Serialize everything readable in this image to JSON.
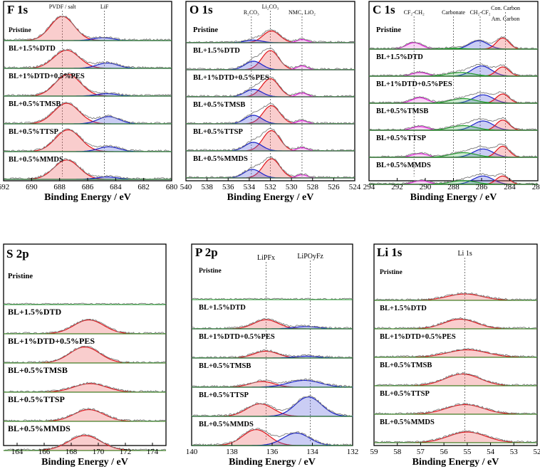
{
  "chart_data": [
    {
      "type": "line",
      "title": "F 1s",
      "xlabel": "Binding Energy / eV",
      "xlim": [
        692,
        680
      ],
      "ticks": [
        692,
        690,
        688,
        686,
        684,
        682,
        680
      ],
      "tick_labels": [
        "692",
        "690",
        "688",
        "686",
        "684",
        "682",
        "680"
      ],
      "peak_labels": [
        {
          "text": "PVDF / salt",
          "x": 687.8
        },
        {
          "text": "LiF",
          "x": 684.8
        }
      ],
      "samples": [
        "Pristine",
        "BL+1.5%DTD",
        "BL+1%DTD+0.5%PES",
        "BL+0.5%TMSB",
        "BL+0.5%TTSP",
        "BL+0.5%MMDS"
      ],
      "series": [
        {
          "name": "Pristine",
          "peaks": [
            {
              "center": 687.8,
              "height": 1.0,
              "width": 0.85,
              "color": "red"
            },
            {
              "center": 684.9,
              "height": 0.12,
              "width": 0.7,
              "color": "blue"
            }
          ]
        },
        {
          "name": "BL+1.5%DTD",
          "peaks": [
            {
              "center": 687.5,
              "height": 0.75,
              "width": 0.9,
              "color": "red"
            },
            {
              "center": 684.6,
              "height": 0.22,
              "width": 0.75,
              "color": "blue"
            }
          ]
        },
        {
          "name": "BL+1%DTD+0.5%PES",
          "peaks": [
            {
              "center": 687.4,
              "height": 0.9,
              "width": 0.9,
              "color": "red"
            },
            {
              "center": 684.6,
              "height": 0.1,
              "width": 0.75,
              "color": "blue"
            }
          ]
        },
        {
          "name": "BL+0.5%TMSB",
          "peaks": [
            {
              "center": 687.5,
              "height": 0.85,
              "width": 0.9,
              "color": "red"
            },
            {
              "center": 684.5,
              "height": 0.3,
              "width": 0.75,
              "color": "blue"
            }
          ]
        },
        {
          "name": "BL+0.5%TTSP",
          "peaks": [
            {
              "center": 687.4,
              "height": 0.9,
              "width": 0.9,
              "color": "red"
            },
            {
              "center": 684.5,
              "height": 0.2,
              "width": 0.75,
              "color": "blue"
            }
          ]
        },
        {
          "name": "BL+0.5%MMDS",
          "peaks": [
            {
              "center": 687.5,
              "height": 0.8,
              "width": 0.9,
              "color": "red"
            },
            {
              "center": 684.6,
              "height": 0.1,
              "width": 0.75,
              "color": "blue"
            }
          ]
        }
      ]
    },
    {
      "type": "line",
      "title": "O 1s",
      "xlabel": "Binding Energy / eV",
      "xlim": [
        540,
        524
      ],
      "ticks": [
        540,
        538,
        536,
        534,
        532,
        530,
        528,
        526,
        524
      ],
      "tick_labels": [
        "540",
        "538",
        "536",
        "534",
        "532",
        "530",
        "528",
        "526",
        "524"
      ],
      "peak_labels": [
        {
          "text": "R₂CO₃",
          "x": 533.8
        },
        {
          "text": "Li₂CO₃",
          "x": 532.0
        },
        {
          "text": "NMC, LiO₂",
          "x": 529.0
        }
      ],
      "samples": [
        "Pristine",
        "BL+1.5%DTD",
        "BL+1%DTD+0.5%PES",
        "BL+0.5%TMSB",
        "BL+0.5%TTSP",
        "BL+0.5%MMDS"
      ],
      "series": [
        {
          "name": "Pristine",
          "peaks": [
            {
              "center": 531.9,
              "height": 0.55,
              "width": 0.8,
              "color": "red"
            },
            {
              "center": 533.6,
              "height": 0.12,
              "width": 0.8,
              "color": "blue"
            },
            {
              "center": 529.0,
              "height": 0.15,
              "width": 0.5,
              "color": "magenta"
            }
          ]
        },
        {
          "name": "BL+1.5%DTD",
          "peaks": [
            {
              "center": 532.0,
              "height": 0.9,
              "width": 0.8,
              "color": "red"
            },
            {
              "center": 533.6,
              "height": 0.4,
              "width": 0.8,
              "color": "blue"
            },
            {
              "center": 529.0,
              "height": 0.18,
              "width": 0.5,
              "color": "magenta"
            }
          ]
        },
        {
          "name": "BL+1%DTD+0.5%PES",
          "peaks": [
            {
              "center": 532.0,
              "height": 0.85,
              "width": 0.8,
              "color": "red"
            },
            {
              "center": 533.6,
              "height": 0.35,
              "width": 0.8,
              "color": "blue"
            },
            {
              "center": 529.0,
              "height": 0.18,
              "width": 0.5,
              "color": "magenta"
            }
          ]
        },
        {
          "name": "BL+0.5%TMSB",
          "peaks": [
            {
              "center": 531.9,
              "height": 0.85,
              "width": 0.8,
              "color": "red"
            },
            {
              "center": 533.6,
              "height": 0.4,
              "width": 0.8,
              "color": "blue"
            },
            {
              "center": 529.0,
              "height": 0.15,
              "width": 0.5,
              "color": "magenta"
            }
          ]
        },
        {
          "name": "BL+0.5%TTSP",
          "peaks": [
            {
              "center": 531.9,
              "height": 0.95,
              "width": 0.8,
              "color": "red"
            },
            {
              "center": 533.6,
              "height": 0.4,
              "width": 0.8,
              "color": "blue"
            },
            {
              "center": 529.0,
              "height": 0.15,
              "width": 0.5,
              "color": "magenta"
            }
          ]
        },
        {
          "name": "BL+0.5%MMDS",
          "peaks": [
            {
              "center": 531.9,
              "height": 0.9,
              "width": 0.8,
              "color": "red"
            },
            {
              "center": 533.7,
              "height": 0.4,
              "width": 0.8,
              "color": "blue"
            },
            {
              "center": 529.0,
              "height": 0.15,
              "width": 0.5,
              "color": "magenta"
            }
          ]
        }
      ]
    },
    {
      "type": "line",
      "title": "C 1s",
      "xlabel": "Binding Energy / eV",
      "xlim": [
        294,
        282
      ],
      "ticks": [
        294,
        292,
        290,
        288,
        286,
        284,
        282
      ],
      "tick_labels": [
        "294",
        "292",
        "290",
        "288",
        "286",
        "284",
        "282"
      ],
      "peak_labels": [
        {
          "text": "CF₂-CH₂",
          "x": 290.8
        },
        {
          "text": "Carbonate",
          "x": 288.0
        },
        {
          "text": "CH₂-CF₂",
          "x": 286.1
        },
        {
          "text": "Con. Carbon",
          "x": 284.3
        },
        {
          "text": "Am. Carbon",
          "x": 284.3
        }
      ],
      "samples": [
        "Pristine",
        "BL+1.5%DTD",
        "BL+1%DTD+0.5%PES",
        "BL+0.5%TMSB",
        "BL+0.5%TTSP",
        "BL+0.5%MMDS"
      ],
      "series": [
        {
          "name": "Pristine",
          "peaks": [
            {
              "center": 290.8,
              "height": 0.35,
              "width": 0.55,
              "color": "magenta"
            },
            {
              "center": 286.2,
              "height": 0.45,
              "width": 0.65,
              "color": "blue"
            },
            {
              "center": 284.5,
              "height": 0.6,
              "width": 0.45,
              "color": "red"
            },
            {
              "center": 288.0,
              "height": 0.05,
              "width": 0.7,
              "color": "green"
            }
          ]
        },
        {
          "name": "BL+1.5%DTD",
          "peaks": [
            {
              "center": 290.4,
              "height": 0.2,
              "width": 0.55,
              "color": "magenta"
            },
            {
              "center": 286.0,
              "height": 0.55,
              "width": 0.7,
              "color": "blue"
            },
            {
              "center": 284.5,
              "height": 0.5,
              "width": 0.45,
              "color": "red"
            },
            {
              "center": 287.5,
              "height": 0.2,
              "width": 0.9,
              "color": "green"
            }
          ]
        },
        {
          "name": "BL+1%DTD+0.5%PES",
          "peaks": [
            {
              "center": 290.4,
              "height": 0.3,
              "width": 0.55,
              "color": "magenta"
            },
            {
              "center": 285.9,
              "height": 0.45,
              "width": 0.7,
              "color": "blue"
            },
            {
              "center": 284.5,
              "height": 0.5,
              "width": 0.45,
              "color": "red"
            },
            {
              "center": 287.3,
              "height": 0.25,
              "width": 0.9,
              "color": "green"
            }
          ]
        },
        {
          "name": "BL+0.5%TMSB",
          "peaks": [
            {
              "center": 290.4,
              "height": 0.2,
              "width": 0.55,
              "color": "magenta"
            },
            {
              "center": 285.9,
              "height": 0.5,
              "width": 0.7,
              "color": "blue"
            },
            {
              "center": 284.5,
              "height": 0.55,
              "width": 0.45,
              "color": "red"
            },
            {
              "center": 287.3,
              "height": 0.25,
              "width": 0.9,
              "color": "green"
            }
          ]
        },
        {
          "name": "BL+0.5%TTSP",
          "peaks": [
            {
              "center": 290.4,
              "height": 0.2,
              "width": 0.55,
              "color": "magenta"
            },
            {
              "center": 285.9,
              "height": 0.45,
              "width": 0.7,
              "color": "blue"
            },
            {
              "center": 284.5,
              "height": 0.6,
              "width": 0.45,
              "color": "red"
            },
            {
              "center": 287.3,
              "height": 0.25,
              "width": 0.9,
              "color": "green"
            }
          ]
        },
        {
          "name": "BL+0.5%MMDS",
          "peaks": [
            {
              "center": 290.3,
              "height": 0.2,
              "width": 0.55,
              "color": "magenta"
            },
            {
              "center": 285.9,
              "height": 0.45,
              "width": 0.7,
              "color": "blue"
            },
            {
              "center": 284.5,
              "height": 0.45,
              "width": 0.45,
              "color": "red"
            },
            {
              "center": 287.3,
              "height": 0.2,
              "width": 0.9,
              "color": "green"
            }
          ]
        }
      ]
    },
    {
      "type": "line",
      "title": "S 2p",
      "xlabel": "Binding Energy / eV",
      "xlim": [
        163,
        175
      ],
      "ticks": [
        164,
        166,
        168,
        170,
        172,
        174
      ],
      "tick_labels": [
        "164",
        "166",
        "168",
        "170",
        "172",
        "174"
      ],
      "peak_labels": [],
      "samples": [
        "Pristine",
        "BL+1.5%DTD",
        "BL+1%DTD+0.5%PES",
        "BL+0.5%TMSB",
        "BL+0.5%TTSP",
        "BL+0.5%MMDS"
      ],
      "series": [
        {
          "name": "Pristine",
          "peaks": []
        },
        {
          "name": "BL+1.5%DTD",
          "peaks": [
            {
              "center": 169.3,
              "height": 0.65,
              "width": 1.1,
              "color": "red"
            }
          ]
        },
        {
          "name": "BL+1%DTD+0.5%PES",
          "peaks": [
            {
              "center": 169.0,
              "height": 0.75,
              "width": 1.1,
              "color": "red"
            }
          ]
        },
        {
          "name": "BL+0.5%TMSB",
          "peaks": [
            {
              "center": 169.4,
              "height": 0.4,
              "width": 1.2,
              "color": "red"
            }
          ]
        },
        {
          "name": "BL+0.5%TTSP",
          "peaks": [
            {
              "center": 169.3,
              "height": 0.55,
              "width": 1.1,
              "color": "red"
            }
          ]
        },
        {
          "name": "BL+0.5%MMDS",
          "peaks": [
            {
              "center": 169.0,
              "height": 0.7,
              "width": 1.2,
              "color": "red"
            }
          ]
        }
      ]
    },
    {
      "type": "line",
      "title": "P 2p",
      "xlabel": "Binding Energy / eV",
      "xlim": [
        140,
        132
      ],
      "ticks": [
        140,
        138,
        136,
        134,
        132
      ],
      "tick_labels": [
        "140",
        "138",
        "136",
        "134",
        "132"
      ],
      "peak_labels": [
        {
          "text": "LiPFx",
          "x": 136.3
        },
        {
          "text": "LiPOyFz",
          "x": 134.1
        }
      ],
      "samples": [
        "Pristine",
        "BL+1.5%DTD",
        "BL+1%DTD+0.5%PES",
        "BL+0.5%TMSB",
        "BL+0.5%TTSP",
        "BL+0.5%MMDS"
      ],
      "series": [
        {
          "name": "Pristine",
          "peaks": []
        },
        {
          "name": "BL+1.5%DTD",
          "peaks": [
            {
              "center": 136.3,
              "height": 0.4,
              "width": 0.6,
              "color": "red"
            },
            {
              "center": 134.3,
              "height": 0.1,
              "width": 0.6,
              "color": "blue"
            }
          ]
        },
        {
          "name": "BL+1%DTD+0.5%PES",
          "peaks": [
            {
              "center": 136.3,
              "height": 0.3,
              "width": 0.6,
              "color": "red"
            },
            {
              "center": 134.3,
              "height": 0.08,
              "width": 0.6,
              "color": "blue"
            }
          ]
        },
        {
          "name": "BL+0.5%TMSB",
          "peaks": [
            {
              "center": 136.5,
              "height": 0.25,
              "width": 0.6,
              "color": "red"
            },
            {
              "center": 134.4,
              "height": 0.3,
              "width": 0.8,
              "color": "blue"
            }
          ]
        },
        {
          "name": "BL+0.5%TTSP",
          "peaks": [
            {
              "center": 136.6,
              "height": 0.55,
              "width": 0.65,
              "color": "red"
            },
            {
              "center": 134.2,
              "height": 0.85,
              "width": 0.65,
              "color": "blue"
            }
          ]
        },
        {
          "name": "BL+0.5%MMDS",
          "peaks": [
            {
              "center": 136.8,
              "height": 0.7,
              "width": 0.65,
              "color": "red"
            },
            {
              "center": 134.8,
              "height": 0.55,
              "width": 0.65,
              "color": "blue"
            }
          ]
        }
      ]
    },
    {
      "type": "line",
      "title": "Li 1s",
      "xlabel": "Binding Energy / eV",
      "xlim": [
        59,
        52
      ],
      "ticks": [
        59,
        58,
        57,
        56,
        55,
        54,
        53,
        52
      ],
      "tick_labels": [
        "59",
        "58",
        "57",
        "56",
        "55",
        "54",
        "53",
        "52"
      ],
      "peak_labels": [
        {
          "text": "Li 1s",
          "x": 55.1
        }
      ],
      "samples": [
        "Pristine",
        "BL+1.5%DTD",
        "BL+1%DTD+0.5%PES",
        "BL+0.5%TMSB",
        "BL+0.5%TTSP",
        "BL+0.5%MMDS"
      ],
      "series": [
        {
          "name": "Pristine",
          "peaks": [
            {
              "center": 55.1,
              "height": 0.3,
              "width": 0.75,
              "color": "red"
            }
          ]
        },
        {
          "name": "BL+1.5%DTD",
          "peaks": [
            {
              "center": 55.3,
              "height": 0.45,
              "width": 0.7,
              "color": "red"
            }
          ]
        },
        {
          "name": "BL+1%DTD+0.5%PES",
          "peaks": [
            {
              "center": 55.0,
              "height": 0.35,
              "width": 0.85,
              "color": "red"
            }
          ]
        },
        {
          "name": "BL+0.5%TMSB",
          "peaks": [
            {
              "center": 55.2,
              "height": 0.55,
              "width": 0.75,
              "color": "red"
            }
          ]
        },
        {
          "name": "BL+0.5%TTSP",
          "peaks": [
            {
              "center": 55.1,
              "height": 0.45,
              "width": 0.8,
              "color": "red"
            }
          ]
        },
        {
          "name": "BL+0.5%MMDS",
          "peaks": [
            {
              "center": 55.0,
              "height": 0.5,
              "width": 0.8,
              "color": "red"
            }
          ]
        }
      ]
    }
  ]
}
